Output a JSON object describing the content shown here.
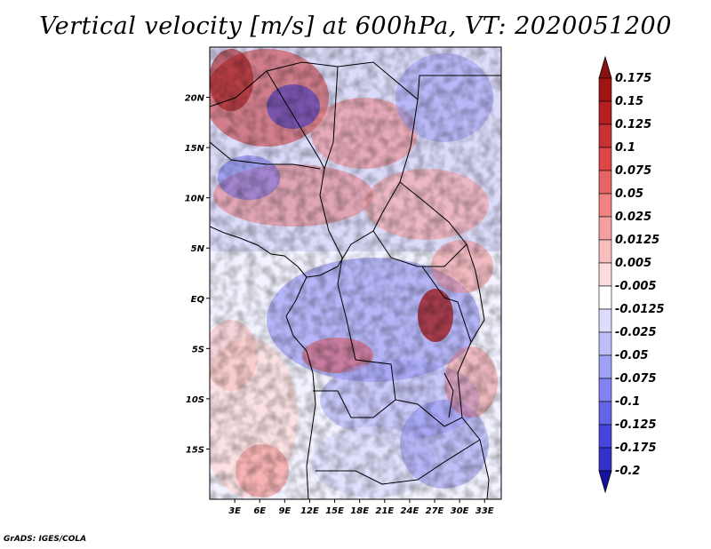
{
  "title": "Vertical velocity [m/s] at 600hPa, VT: 2020051200",
  "credit": "GrADS: IGES/COLA",
  "map": {
    "lon_range": [
      0,
      35
    ],
    "lat_range": [
      -20,
      25
    ],
    "lon_ticks": [
      {
        "value": 3,
        "label": "3E"
      },
      {
        "value": 6,
        "label": "6E"
      },
      {
        "value": 9,
        "label": "9E"
      },
      {
        "value": 12,
        "label": "12E"
      },
      {
        "value": 15,
        "label": "15E"
      },
      {
        "value": 18,
        "label": "18E"
      },
      {
        "value": 21,
        "label": "21E"
      },
      {
        "value": 24,
        "label": "24E"
      },
      {
        "value": 27,
        "label": "27E"
      },
      {
        "value": 30,
        "label": "30E"
      },
      {
        "value": 33,
        "label": "33E"
      }
    ],
    "lat_ticks": [
      {
        "value": 20,
        "label": "20N"
      },
      {
        "value": 15,
        "label": "15N"
      },
      {
        "value": 10,
        "label": "10N"
      },
      {
        "value": 5,
        "label": "5N"
      },
      {
        "value": 0,
        "label": "EQ"
      },
      {
        "value": -5,
        "label": "5S"
      },
      {
        "value": -10,
        "label": "10S"
      },
      {
        "value": -15,
        "label": "15S"
      }
    ]
  },
  "colorbar": {
    "levels": [
      {
        "label": "0.175",
        "color": "#a01414"
      },
      {
        "label": "0.15",
        "color": "#b42020"
      },
      {
        "label": "0.125",
        "color": "#c83232"
      },
      {
        "label": "0.1",
        "color": "#dc4646"
      },
      {
        "label": "0.075",
        "color": "#e66464"
      },
      {
        "label": "0.05",
        "color": "#f08282"
      },
      {
        "label": "0.025",
        "color": "#f5a0a0"
      },
      {
        "label": "0.0125",
        "color": "#f8bebe"
      },
      {
        "label": "0.005",
        "color": "#fcdcdc"
      },
      {
        "label": "-0.005",
        "color": "#ffffff"
      },
      {
        "label": "-0.0125",
        "color": "#dcdcfc"
      },
      {
        "label": "-0.025",
        "color": "#bebef8"
      },
      {
        "label": "-0.05",
        "color": "#a0a0f5"
      },
      {
        "label": "-0.075",
        "color": "#8282f0"
      },
      {
        "label": "-0.1",
        "color": "#6464e6"
      },
      {
        "label": "-0.125",
        "color": "#4646dc"
      },
      {
        "label": "-0.175",
        "color": "#3232c8"
      },
      {
        "label": "-0.2",
        "color": "#2020b4"
      }
    ],
    "top_color": "#8c1010",
    "bottom_color": "#1414a0"
  }
}
